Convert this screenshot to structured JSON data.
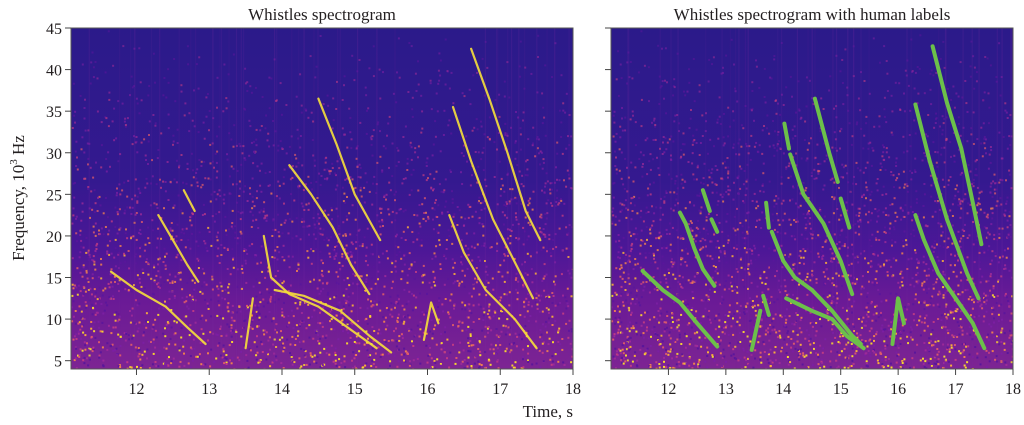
{
  "chart_data": [
    {
      "type": "heatmap",
      "title": "Whistles spectrogram",
      "xlabel": "Time, s",
      "ylabel": "Frequency, 10^3 Hz",
      "ylabel_parts": {
        "base": "Frequency, 10",
        "sup": "3",
        "unit": " Hz"
      },
      "xlim": [
        11.1,
        18
      ],
      "ylim": [
        4,
        45
      ],
      "xticks": [
        12,
        13,
        14,
        15,
        16,
        17,
        18
      ],
      "yticks": [
        5,
        10,
        15,
        20,
        25,
        30,
        35,
        40,
        45
      ],
      "colormap": "plasma",
      "grid": false,
      "whistle_contours_kHz": [
        {
          "points": [
            [
              11.65,
              15.7
            ],
            [
              12.0,
              13.5
            ],
            [
              12.4,
              11.5
            ],
            [
              12.7,
              9.0
            ],
            [
              12.95,
              7.0
            ]
          ]
        },
        {
          "points": [
            [
              12.3,
              22.5
            ],
            [
              12.5,
              19.5
            ],
            [
              12.7,
              16.5
            ],
            [
              12.85,
              14.5
            ]
          ]
        },
        {
          "points": [
            [
              12.65,
              25.5
            ],
            [
              12.8,
              23.0
            ]
          ]
        },
        {
          "points": [
            [
              13.5,
              6.5
            ],
            [
              13.6,
              12.5
            ]
          ]
        },
        {
          "points": [
            [
              13.75,
              20.0
            ],
            [
              13.85,
              15.0
            ],
            [
              14.1,
              13.0
            ],
            [
              14.5,
              11.5
            ],
            [
              14.9,
              9.0
            ],
            [
              15.3,
              6.5
            ]
          ]
        },
        {
          "points": [
            [
              14.1,
              28.5
            ],
            [
              14.4,
              25.0
            ],
            [
              14.7,
              21.0
            ],
            [
              14.95,
              16.5
            ],
            [
              15.2,
              13.0
            ]
          ]
        },
        {
          "points": [
            [
              14.5,
              36.5
            ],
            [
              14.75,
              31.0
            ],
            [
              15.0,
              25.0
            ],
            [
              15.35,
              19.5
            ]
          ]
        },
        {
          "points": [
            [
              13.9,
              13.5
            ],
            [
              14.3,
              12.8
            ],
            [
              14.8,
              11.0
            ],
            [
              15.2,
              8.0
            ],
            [
              15.5,
              6.0
            ]
          ]
        },
        {
          "points": [
            [
              15.95,
              7.5
            ],
            [
              16.05,
              12.0
            ],
            [
              16.15,
              9.5
            ]
          ]
        },
        {
          "points": [
            [
              16.3,
              22.5
            ],
            [
              16.5,
              18.0
            ],
            [
              16.8,
              13.5
            ],
            [
              17.2,
              10.0
            ],
            [
              17.5,
              6.5
            ]
          ]
        },
        {
          "points": [
            [
              16.35,
              35.5
            ],
            [
              16.6,
              29.0
            ],
            [
              16.9,
              22.0
            ],
            [
              17.25,
              16.0
            ],
            [
              17.45,
              12.5
            ]
          ]
        },
        {
          "points": [
            [
              16.6,
              42.5
            ],
            [
              16.85,
              36.5
            ],
            [
              17.1,
              30.0
            ],
            [
              17.35,
              23.0
            ],
            [
              17.55,
              19.5
            ]
          ]
        }
      ]
    },
    {
      "type": "heatmap",
      "title": "Whistles spectrogram with human labels",
      "xlabel": "",
      "ylabel": "",
      "xlim": [
        11.0,
        18
      ],
      "ylim": [
        4,
        45
      ],
      "xticks": [
        12,
        13,
        14,
        15,
        16,
        17,
        18
      ],
      "yticks": [
        5,
        10,
        15,
        20,
        25,
        30,
        35,
        40,
        45
      ],
      "colormap": "plasma",
      "grid": false,
      "label_color": "#6cc04a",
      "human_labels_kHz": [
        {
          "points": [
            [
              11.55,
              15.8
            ],
            [
              11.9,
              13.5
            ],
            [
              12.2,
              12.0
            ],
            [
              12.5,
              9.5
            ],
            [
              12.85,
              6.7
            ]
          ]
        },
        {
          "points": [
            [
              12.2,
              22.8
            ],
            [
              12.3,
              21.5
            ],
            [
              12.45,
              18.5
            ],
            [
              12.6,
              16.0
            ],
            [
              12.8,
              14.0
            ]
          ]
        },
        {
          "points": [
            [
              12.6,
              25.5
            ],
            [
              12.72,
              23.0
            ]
          ]
        },
        {
          "points": [
            [
              12.75,
              22.0
            ],
            [
              12.85,
              20.5
            ]
          ]
        },
        {
          "points": [
            [
              13.45,
              6.3
            ],
            [
              13.6,
              11.0
            ]
          ]
        },
        {
          "points": [
            [
              13.65,
              12.8
            ],
            [
              13.75,
              10.5
            ]
          ]
        },
        {
          "points": [
            [
              13.7,
              24.0
            ],
            [
              13.75,
              21.0
            ]
          ]
        },
        {
          "points": [
            [
              13.8,
              20.5
            ],
            [
              14.0,
              17.0
            ],
            [
              14.2,
              15.0
            ],
            [
              14.5,
              13.5
            ],
            [
              14.85,
              11.0
            ],
            [
              15.2,
              8.0
            ],
            [
              15.35,
              7.0
            ]
          ]
        },
        {
          "points": [
            [
              14.02,
              33.5
            ],
            [
              14.1,
              30.5
            ]
          ]
        },
        {
          "points": [
            [
              14.12,
              29.8
            ],
            [
              14.35,
              25.0
            ],
            [
              14.7,
              21.5
            ],
            [
              15.0,
              17.0
            ],
            [
              15.2,
              13.0
            ]
          ]
        },
        {
          "points": [
            [
              14.55,
              36.5
            ],
            [
              14.8,
              30.0
            ],
            [
              14.95,
              26.5
            ]
          ]
        },
        {
          "points": [
            [
              15.0,
              24.5
            ],
            [
              15.15,
              21.0
            ]
          ]
        },
        {
          "points": [
            [
              14.05,
              12.5
            ],
            [
              14.5,
              11.0
            ],
            [
              14.85,
              10.0
            ],
            [
              15.1,
              8.0
            ],
            [
              15.4,
              6.5
            ]
          ]
        },
        {
          "points": [
            [
              15.9,
              7.0
            ],
            [
              16.0,
              12.5
            ],
            [
              16.1,
              9.5
            ]
          ]
        },
        {
          "points": [
            [
              16.3,
              22.5
            ],
            [
              16.45,
              19.5
            ],
            [
              16.7,
              15.5
            ],
            [
              17.0,
              12.5
            ],
            [
              17.3,
              9.5
            ],
            [
              17.5,
              6.5
            ]
          ]
        },
        {
          "points": [
            [
              16.3,
              35.8
            ],
            [
              16.55,
              29.0
            ],
            [
              16.85,
              22.0
            ],
            [
              17.2,
              15.5
            ],
            [
              17.4,
              12.5
            ]
          ]
        },
        {
          "points": [
            [
              16.6,
              42.8
            ],
            [
              16.85,
              36.0
            ],
            [
              17.1,
              30.5
            ],
            [
              17.3,
              24.0
            ],
            [
              17.45,
              19.0
            ]
          ]
        }
      ]
    }
  ]
}
